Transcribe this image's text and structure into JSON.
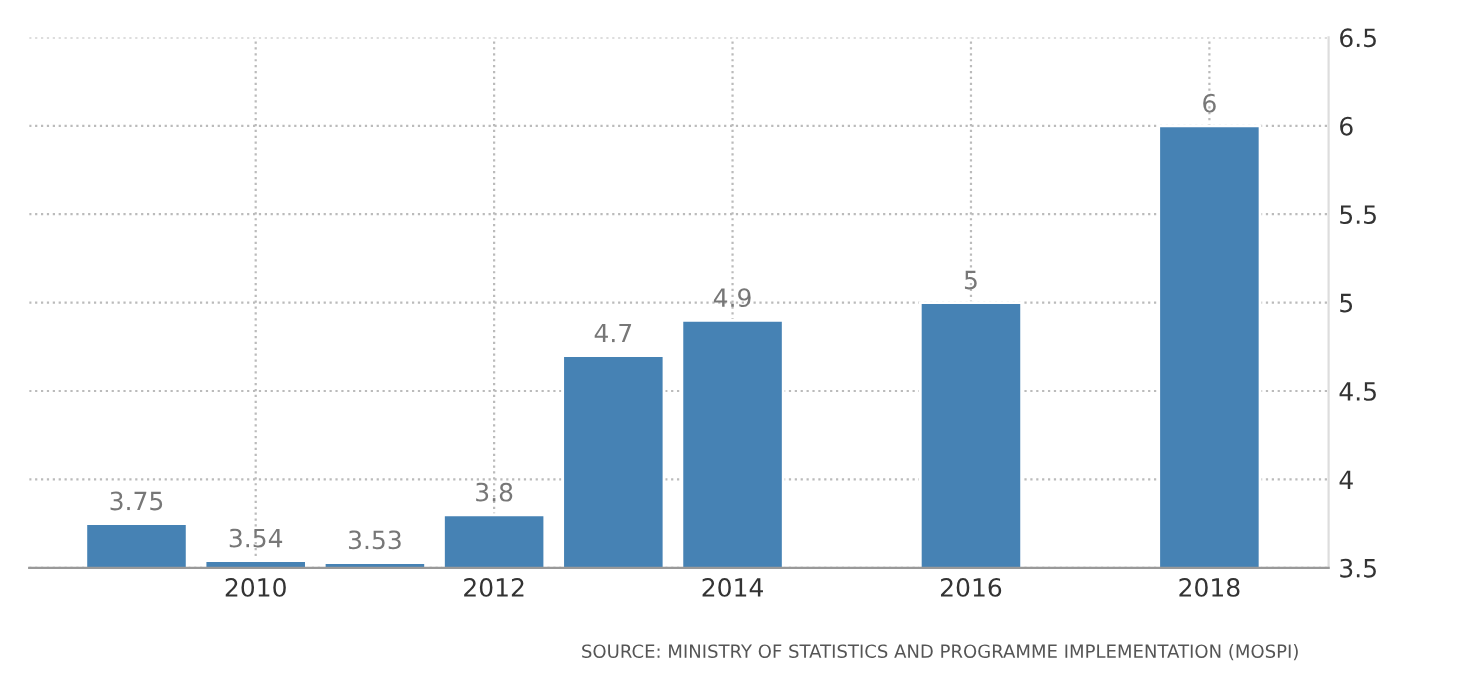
{
  "chart_data": {
    "type": "bar",
    "x": [
      2009,
      2010,
      2011,
      2012,
      2013,
      2014,
      2016,
      2018
    ],
    "values": [
      3.75,
      3.54,
      3.53,
      3.8,
      4.7,
      4.9,
      5,
      6
    ],
    "color": "#4682b4",
    "data_labels": true,
    "xlim": [
      2008.1,
      2019
    ],
    "xticks": [
      2010,
      2012,
      2014,
      2016,
      2018
    ],
    "ylim": [
      3.5,
      6.5
    ],
    "yticks": [
      3.5,
      4,
      4.5,
      5,
      5.5,
      6,
      6.5
    ],
    "grid": true,
    "annotations": [
      "SOURCE: MINISTRY OF STATISTICS AND PROGRAMME IMPLEMENTATION (MOSPI)"
    ]
  }
}
